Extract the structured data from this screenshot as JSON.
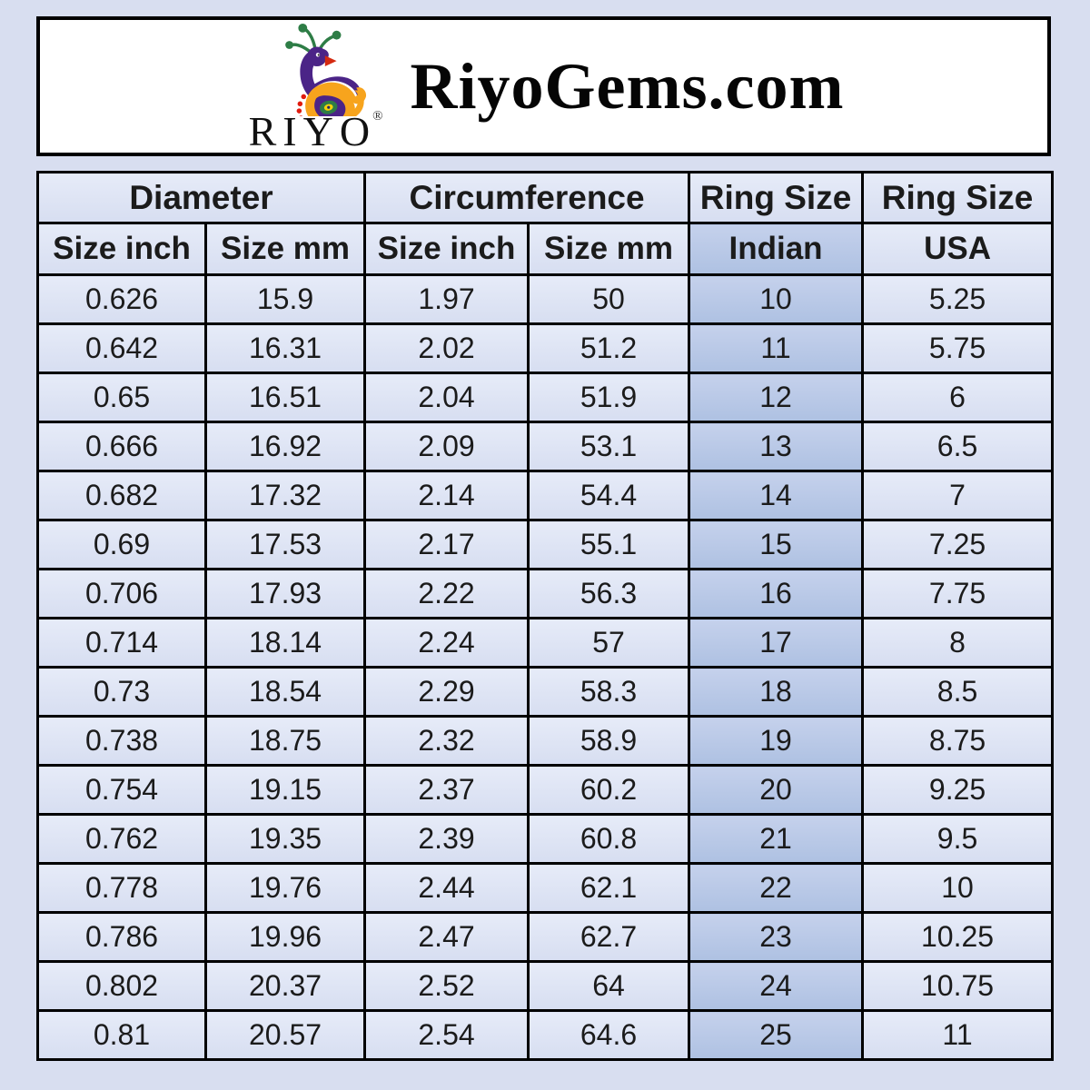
{
  "page": {
    "background_color": "#d8def0",
    "border_color": "#000000",
    "cell_color": "#dce3f3",
    "highlight_color": "#b8c8e4"
  },
  "header": {
    "brand": "RIYO",
    "registered_mark": "®",
    "title": "RiyoGems.com",
    "logo_icon": "peacock-logo"
  },
  "table": {
    "column_groups": [
      {
        "label": "Diameter",
        "span": 2
      },
      {
        "label": "Circumference",
        "span": 2
      },
      {
        "label": "Ring Size",
        "span": 1
      },
      {
        "label": "Ring Size",
        "span": 1
      }
    ],
    "subheaders": [
      "Size inch",
      "Size mm",
      "Size inch",
      "Size mm",
      "Indian",
      "USA"
    ],
    "highlight_column_index": 4,
    "rows": [
      [
        "0.626",
        "15.9",
        "1.97",
        "50",
        "10",
        "5.25"
      ],
      [
        "0.642",
        "16.31",
        "2.02",
        "51.2",
        "11",
        "5.75"
      ],
      [
        "0.65",
        "16.51",
        "2.04",
        "51.9",
        "12",
        "6"
      ],
      [
        "0.666",
        "16.92",
        "2.09",
        "53.1",
        "13",
        "6.5"
      ],
      [
        "0.682",
        "17.32",
        "2.14",
        "54.4",
        "14",
        "7"
      ],
      [
        "0.69",
        "17.53",
        "2.17",
        "55.1",
        "15",
        "7.25"
      ],
      [
        "0.706",
        "17.93",
        "2.22",
        "56.3",
        "16",
        "7.75"
      ],
      [
        "0.714",
        "18.14",
        "2.24",
        "57",
        "17",
        "8"
      ],
      [
        "0.73",
        "18.54",
        "2.29",
        "58.3",
        "18",
        "8.5"
      ],
      [
        "0.738",
        "18.75",
        "2.32",
        "58.9",
        "19",
        "8.75"
      ],
      [
        "0.754",
        "19.15",
        "2.37",
        "60.2",
        "20",
        "9.25"
      ],
      [
        "0.762",
        "19.35",
        "2.39",
        "60.8",
        "21",
        "9.5"
      ],
      [
        "0.778",
        "19.76",
        "2.44",
        "62.1",
        "22",
        "10"
      ],
      [
        "0.786",
        "19.96",
        "2.47",
        "62.7",
        "23",
        "10.25"
      ],
      [
        "0.802",
        "20.37",
        "2.52",
        "64",
        "24",
        "10.75"
      ],
      [
        "0.81",
        "20.57",
        "2.54",
        "64.6",
        "25",
        "11"
      ]
    ]
  }
}
